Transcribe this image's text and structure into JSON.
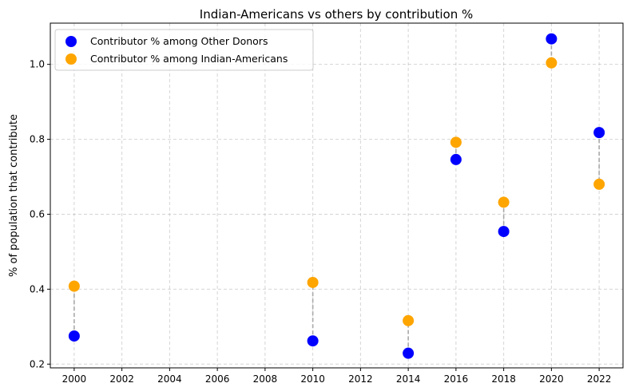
{
  "chart_data": {
    "type": "scatter",
    "title": "Indian-Americans vs others by contribution %",
    "xlabel": "",
    "ylabel": "% of population that contribute",
    "x": [
      2000,
      2010,
      2014,
      2016,
      2018,
      2020,
      2022
    ],
    "xlim": [
      1999.0,
      2023.0
    ],
    "ylim": [
      0.19,
      1.11
    ],
    "xticks": [
      "2000",
      "2002",
      "2004",
      "2006",
      "2008",
      "2010",
      "2012",
      "2014",
      "2016",
      "2018",
      "2020",
      "2022"
    ],
    "yticks": [
      "0.2",
      "0.4",
      "0.6",
      "0.8",
      "1.0"
    ],
    "grid": true,
    "legend_position": "top-left",
    "connectors": "dashed gray line between paired points",
    "series": [
      {
        "name": "Contributor % among Other Donors",
        "color": "#0000ff",
        "values": [
          0.275,
          0.262,
          0.229,
          0.746,
          0.554,
          1.068,
          0.818
        ]
      },
      {
        "name": "Contributor % among Indian-Americans",
        "color": "#ffa500",
        "values": [
          0.408,
          0.418,
          0.316,
          0.792,
          0.632,
          1.004,
          0.68
        ]
      }
    ]
  }
}
